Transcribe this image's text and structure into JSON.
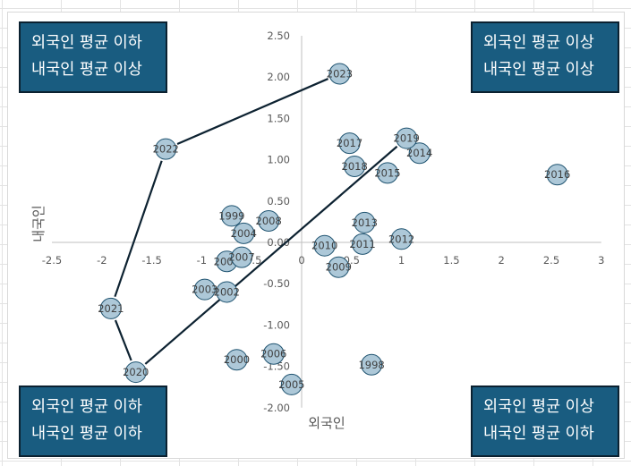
{
  "quadrants": {
    "top_left": {
      "line1": "외국인 평균 이하",
      "line2": "내국인 평균 이상"
    },
    "top_right": {
      "line1": "외국인 평균 이상",
      "line2": "내국인 평균 이상"
    },
    "bottom_left": {
      "line1": "외국인 평균 이하",
      "line2": "내국인 평균 이하"
    },
    "bottom_right": {
      "line1": "외국인 평균 이상",
      "line2": "내국인 평균 이하"
    }
  },
  "colors": {
    "marker_fill": "#adc8d8",
    "marker_stroke": "#1f5370",
    "box_fill": "#195c80",
    "trajectory": "#0d2231",
    "axis": "#bfbfbf"
  },
  "chart_data": {
    "type": "scatter",
    "xlabel": "외국인",
    "ylabel": "내국인",
    "xlim": [
      -2.5,
      3
    ],
    "ylim": [
      -2,
      2.5
    ],
    "x_ticks": [
      "-2.5",
      "-2",
      "-1.5",
      "-1",
      "-0.5",
      "0",
      "0.5",
      "1",
      "1.5",
      "2",
      "2.5",
      "3"
    ],
    "y_ticks": [
      "-2.00",
      "-1.50",
      "-1.00",
      "-0.50",
      "0.00",
      "0.50",
      "1.00",
      "1.50",
      "2.00",
      "2.50"
    ],
    "grid": false,
    "points": [
      {
        "label": "1998",
        "x": 0.7,
        "y": -1.48
      },
      {
        "label": "1999",
        "x": -0.7,
        "y": 0.32
      },
      {
        "label": "2000",
        "x": -0.65,
        "y": -1.42
      },
      {
        "label": "2001",
        "x": -0.75,
        "y": -0.23
      },
      {
        "label": "2002",
        "x": -0.75,
        "y": -0.6
      },
      {
        "label": "2003",
        "x": -0.97,
        "y": -0.57
      },
      {
        "label": "2004",
        "x": -0.58,
        "y": 0.11
      },
      {
        "label": "2005",
        "x": -0.1,
        "y": -1.72
      },
      {
        "label": "2006",
        "x": -0.28,
        "y": -1.35
      },
      {
        "label": "2007",
        "x": -0.6,
        "y": -0.18
      },
      {
        "label": "2008",
        "x": -0.33,
        "y": 0.26
      },
      {
        "label": "2009",
        "x": 0.37,
        "y": -0.3
      },
      {
        "label": "2010",
        "x": 0.23,
        "y": -0.04
      },
      {
        "label": "2011",
        "x": 0.61,
        "y": -0.02
      },
      {
        "label": "2012",
        "x": 1.0,
        "y": 0.04
      },
      {
        "label": "2013",
        "x": 0.63,
        "y": 0.24
      },
      {
        "label": "2014",
        "x": 1.18,
        "y": 1.08
      },
      {
        "label": "2015",
        "x": 0.86,
        "y": 0.84
      },
      {
        "label": "2016",
        "x": 2.56,
        "y": 0.82
      },
      {
        "label": "2017",
        "x": 0.48,
        "y": 1.2
      },
      {
        "label": "2018",
        "x": 0.53,
        "y": 0.92
      },
      {
        "label": "2019",
        "x": 1.05,
        "y": 1.26
      },
      {
        "label": "2020",
        "x": -1.66,
        "y": -1.57
      },
      {
        "label": "2021",
        "x": -1.91,
        "y": -0.8
      },
      {
        "label": "2022",
        "x": -1.36,
        "y": 1.13
      },
      {
        "label": "2023",
        "x": 0.38,
        "y": 2.04
      }
    ],
    "trajectory": [
      "2019",
      "2020",
      "2021",
      "2022",
      "2023"
    ]
  }
}
